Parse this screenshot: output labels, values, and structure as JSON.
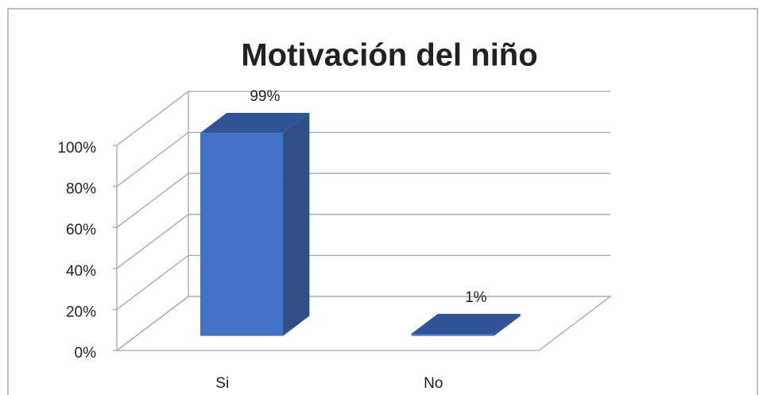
{
  "chart_data": {
    "type": "bar3d",
    "title": "Motivación del niño",
    "categories": [
      "Si",
      "No"
    ],
    "values": [
      99,
      1
    ],
    "value_labels": [
      "99%",
      "1%"
    ],
    "color": "#4472c4",
    "side_color": "#2f4f86",
    "top_color": "#2f5597",
    "ylim": [
      0,
      100
    ],
    "yticks": [
      {
        "value": 0,
        "label": "0%"
      },
      {
        "value": 20,
        "label": "20%"
      },
      {
        "value": 40,
        "label": "40%"
      },
      {
        "value": 60,
        "label": "60%"
      },
      {
        "value": 80,
        "label": "80%"
      },
      {
        "value": 100,
        "label": "100%"
      }
    ],
    "grid": true
  }
}
